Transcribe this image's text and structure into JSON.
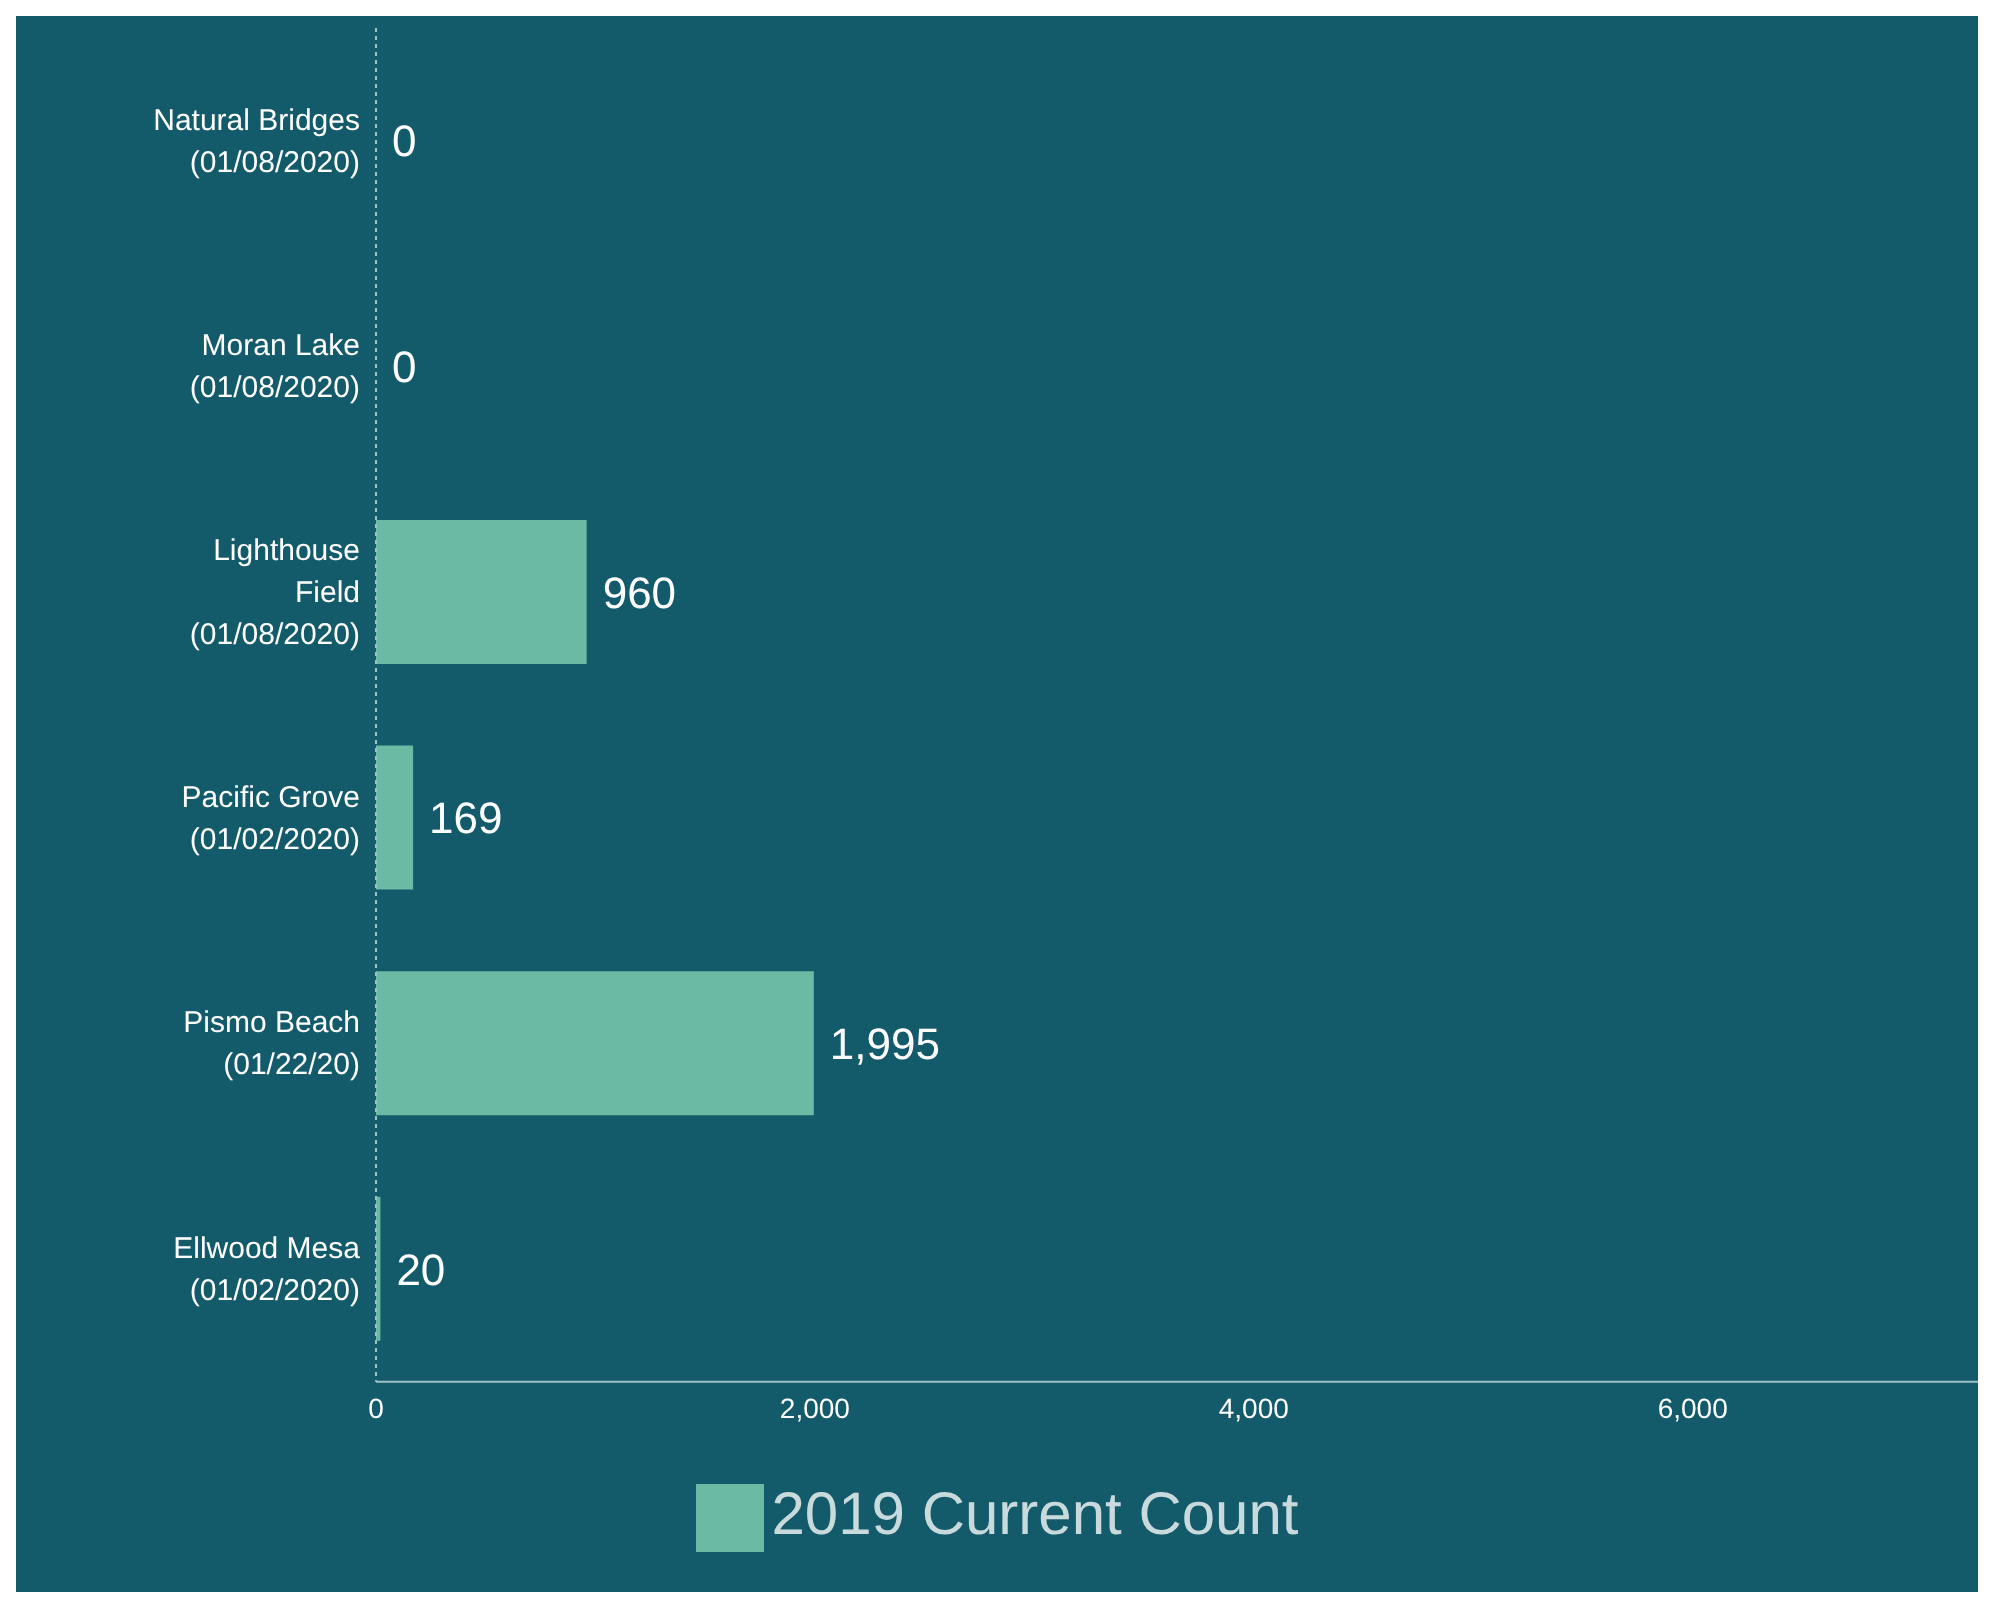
{
  "chart_data": {
    "type": "bar",
    "orientation": "horizontal",
    "categories": [
      "Natural Bridges\n(01/08/2020)",
      "Moran Lake\n(01/08/2020)",
      "Lighthouse\nField\n(01/08/2020)",
      "Pacific Grove\n(01/02/2020)",
      "Pismo Beach\n(01/22/20)",
      "Ellwood Mesa\n(01/02/2020)"
    ],
    "series": [
      {
        "name": "2019 Current Count",
        "color": "#6bbaa3",
        "values": [
          0,
          0,
          960,
          169,
          1995,
          20
        ],
        "value_labels": [
          "0",
          "0",
          "960",
          "169",
          "1,995",
          "20"
        ]
      }
    ],
    "xlim": [
      0,
      7300
    ],
    "xticks": [
      0,
      {
        "value": 2000,
        "label": "2,000"
      },
      {
        "value": 4000,
        "label": "4,000"
      },
      {
        "value": 6000,
        "label": "6,000"
      }
    ],
    "grid": false,
    "legend": "bottom"
  }
}
